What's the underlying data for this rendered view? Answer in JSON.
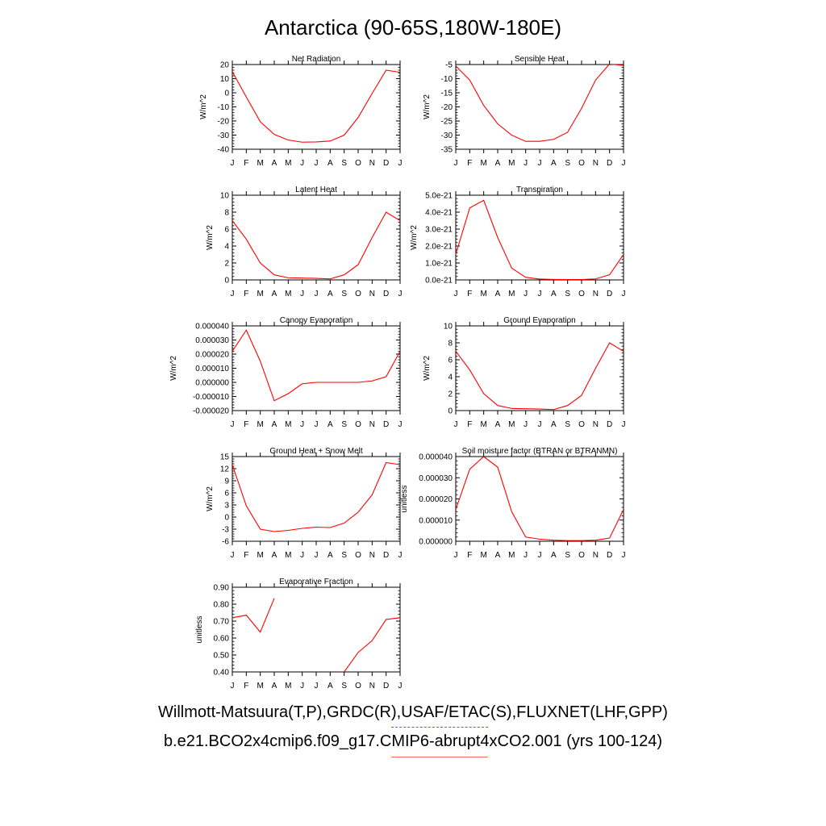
{
  "page": {
    "title": "Antarctica (90-65S,180W-180E)"
  },
  "months": [
    "J",
    "F",
    "M",
    "A",
    "M",
    "J",
    "J",
    "A",
    "S",
    "O",
    "N",
    "D",
    "J"
  ],
  "line_color": "#ff0000",
  "legend": [
    {
      "label": "Willmott-Matsuura(T,P),GRDC(R),USAF/ETAC(S),FLUXNET(LHF,GPP)",
      "color": "#5555ff",
      "style": "dashed"
    },
    {
      "label": "b.e21.BCO2x4cmip6.f09_g17.CMIP6-abrupt4xCO2.001 (yrs 100-124)",
      "color": "#ff6666",
      "style": "solid"
    }
  ],
  "chart_data": [
    {
      "type": "line",
      "title": "Net Radiation",
      "ylabel": "W/m^2",
      "ylim": [
        -40,
        20
      ],
      "yticks": [
        -40,
        -30,
        -20,
        -10,
        0,
        10,
        20
      ],
      "yticklabels": [
        "-40",
        "-30",
        "-20",
        "-10",
        "0",
        "10",
        "20"
      ],
      "values": [
        15.0,
        -3.0,
        -20.5,
        -29.5,
        -33.5,
        -35.0,
        -34.8,
        -34.2,
        -30.0,
        -17.5,
        -0.5,
        16.0,
        14.5
      ]
    },
    {
      "type": "line",
      "title": "Sensible Heat",
      "ylabel": "W/m^2",
      "ylim": [
        -35,
        -5
      ],
      "yticks": [
        -35,
        -30,
        -25,
        -20,
        -15,
        -10,
        -5
      ],
      "yticklabels": [
        "-35",
        "-30",
        "-25",
        "-20",
        "-15",
        "-10",
        "-5"
      ],
      "values": [
        -5.5,
        -10.5,
        -19.5,
        -26.0,
        -30.0,
        -32.2,
        -32.2,
        -31.5,
        -29.0,
        -20.5,
        -10.5,
        -4.8,
        -5.3
      ]
    },
    {
      "type": "line",
      "title": "Latent Heat",
      "ylabel": "W/m^2",
      "ylim": [
        0,
        10
      ],
      "yticks": [
        0,
        2,
        4,
        6,
        8,
        10
      ],
      "yticklabels": [
        "0",
        "2",
        "4",
        "6",
        "8",
        "10"
      ],
      "values": [
        7.0,
        4.8,
        2.0,
        0.6,
        0.25,
        0.22,
        0.18,
        0.12,
        0.6,
        1.8,
        5.0,
        8.0,
        7.0
      ]
    },
    {
      "type": "line",
      "title": "Transpiration",
      "ylabel": "W/m^2",
      "ylim": [
        0,
        5e-21
      ],
      "yticks": [
        0,
        1e-21,
        2e-21,
        3e-21,
        4e-21,
        5e-21
      ],
      "yticklabels": [
        "0.0e-21",
        "1.0e-21",
        "2.0e-21",
        "3.0e-21",
        "4.0e-21",
        "5.0e-21"
      ],
      "values": [
        1.5e-21,
        4.25e-21,
        4.7e-21,
        2.5e-21,
        7e-22,
        1.5e-22,
        5e-23,
        3e-23,
        2e-23,
        2e-23,
        6e-23,
        3e-22,
        1.5e-21
      ]
    },
    {
      "type": "line",
      "title": "Canopy Evaporation",
      "ylabel": "W/m^2",
      "ylim": [
        -2e-05,
        4e-05
      ],
      "yticks": [
        -2e-05,
        -1e-05,
        0,
        1e-05,
        2e-05,
        3e-05,
        4e-05
      ],
      "yticklabels": [
        "-0.000020",
        "-0.000010",
        "0.000000",
        "0.000010",
        "0.000020",
        "0.000030",
        "0.000040"
      ],
      "values": [
        2.2e-05,
        3.7e-05,
        1.5e-05,
        -1.3e-05,
        -8e-06,
        -1e-06,
        0.0,
        0.0,
        0.0,
        0.0,
        1e-06,
        4e-06,
        2.2e-05
      ]
    },
    {
      "type": "line",
      "title": "Ground Evaporation",
      "ylabel": "W/m^2",
      "ylim": [
        0,
        10
      ],
      "yticks": [
        0,
        2,
        4,
        6,
        8,
        10
      ],
      "yticklabels": [
        "0",
        "2",
        "4",
        "6",
        "8",
        "10"
      ],
      "values": [
        7.0,
        4.8,
        2.0,
        0.6,
        0.25,
        0.22,
        0.18,
        0.12,
        0.6,
        1.8,
        5.0,
        8.0,
        7.0
      ]
    },
    {
      "type": "line",
      "title": "Ground Heat + Snow Melt",
      "ylabel": "W/m^2",
      "ylim": [
        -6,
        15
      ],
      "yticks": [
        -6,
        -3,
        0,
        3,
        6,
        9,
        12,
        15
      ],
      "yticklabels": [
        "-6",
        "-3",
        "0",
        "3",
        "6",
        "9",
        "12",
        "15"
      ],
      "values": [
        13.0,
        2.8,
        -3.0,
        -3.6,
        -3.3,
        -2.8,
        -2.5,
        -2.6,
        -1.5,
        1.2,
        5.5,
        13.5,
        13.0
      ]
    },
    {
      "type": "line",
      "title": "Soil moisture factor (BTRAN or BTRANMN)",
      "ylabel": "unitless",
      "ylim": [
        0,
        4e-05
      ],
      "yticks": [
        0,
        1e-05,
        2e-05,
        3e-05,
        4e-05
      ],
      "yticklabels": [
        "0.000000",
        "0.000010",
        "0.000020",
        "0.000030",
        "0.000040"
      ],
      "values": [
        1.5e-05,
        3.4e-05,
        4e-05,
        3.5e-05,
        1.4e-05,
        2e-06,
        1e-06,
        5e-07,
        3e-07,
        3e-07,
        5e-07,
        1.5e-06,
        1.5e-05
      ]
    },
    {
      "type": "line",
      "title": "Evaporative Fraction",
      "ylabel": "unitless",
      "ylim": [
        0.4,
        0.9
      ],
      "yticks": [
        0.4,
        0.5,
        0.6,
        0.7,
        0.8,
        0.9
      ],
      "yticklabels": [
        "0.40",
        "0.50",
        "0.60",
        "0.70",
        "0.80",
        "0.90"
      ],
      "values": [
        0.72,
        0.735,
        0.635,
        0.835,
        null,
        null,
        null,
        null,
        0.4,
        0.515,
        0.585,
        0.71,
        0.72
      ]
    }
  ]
}
